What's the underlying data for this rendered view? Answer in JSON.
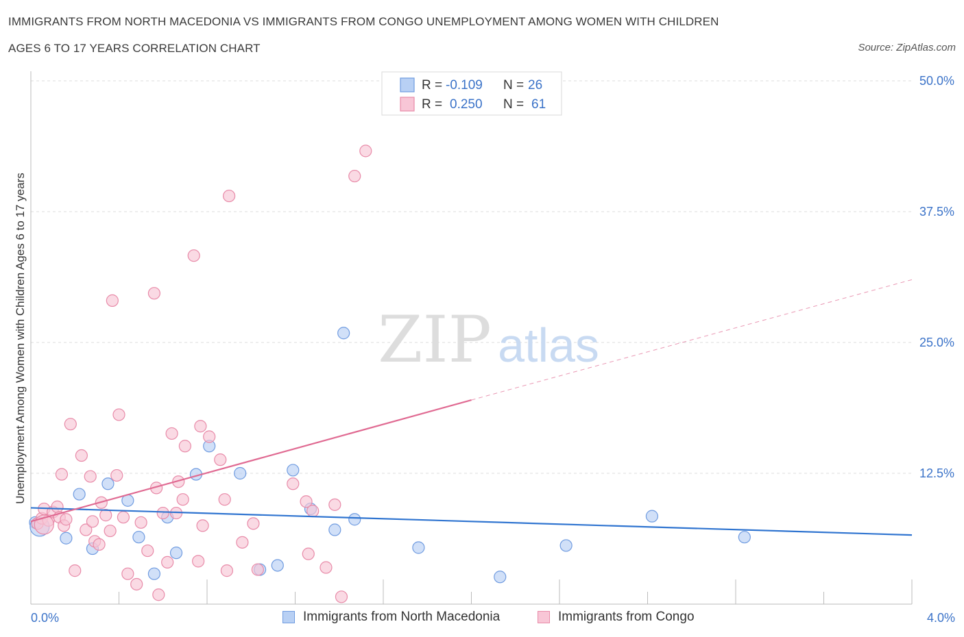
{
  "title_line1": "IMMIGRANTS FROM NORTH MACEDONIA VS IMMIGRANTS FROM CONGO UNEMPLOYMENT AMONG WOMEN WITH CHILDREN",
  "title_line2": "AGES 6 TO 17 YEARS CORRELATION CHART",
  "source": "Source: ZipAtlas.com",
  "watermark": {
    "zip": "ZIP",
    "atlas": "atlas"
  },
  "legend": {
    "r_label": "R =",
    "n_label": "N =",
    "rows": [
      {
        "r": "-0.109",
        "n": "26",
        "fill": "#b8d0f4",
        "stroke": "#6f9be0"
      },
      {
        "r": "0.250",
        "n": "61",
        "fill": "#f8c6d6",
        "stroke": "#e88aa8"
      }
    ],
    "value_color": "#3a72c8"
  },
  "chart_data": {
    "type": "scatter",
    "title": "IMMIGRANTS FROM NORTH MACEDONIA VS IMMIGRANTS FROM CONGO UNEMPLOYMENT AMONG WOMEN WITH CHILDREN AGES 6 TO 17 YEARS CORRELATION CHART",
    "xlabel": "",
    "ylabel": "Unemployment Among Women with Children Ages 6 to 17 years",
    "xlim": [
      0,
      4.0
    ],
    "ylim": [
      0,
      50.0
    ],
    "x_tick_labels": {
      "0": "0.0%",
      "4": "4.0%"
    },
    "y_ticks": [
      12.5,
      25.0,
      37.5,
      50.0
    ],
    "y_tick_labels": [
      "12.5%",
      "25.0%",
      "37.5%",
      "50.0%"
    ],
    "grid": true,
    "legend_position": "top-center",
    "tick_color": "#3a72c8",
    "series": [
      {
        "name": "Immigrants from North Macedonia",
        "color": "#6f9be0",
        "fill": "#b8d0f4",
        "line_color": "#2f74d0",
        "trend": {
          "x0": 0.0,
          "y0": 9.2,
          "x1": 4.0,
          "y1": 6.6
        },
        "points": [
          [
            0.02,
            7.8
          ],
          [
            0.16,
            6.3
          ],
          [
            0.22,
            10.5
          ],
          [
            0.28,
            5.3
          ],
          [
            0.35,
            11.5
          ],
          [
            0.44,
            9.9
          ],
          [
            0.49,
            6.4
          ],
          [
            0.56,
            2.9
          ],
          [
            0.62,
            8.3
          ],
          [
            0.66,
            4.9
          ],
          [
            0.75,
            12.4
          ],
          [
            0.81,
            15.1
          ],
          [
            0.95,
            12.5
          ],
          [
            1.04,
            3.3
          ],
          [
            1.12,
            3.7
          ],
          [
            1.19,
            12.8
          ],
          [
            1.27,
            9.1
          ],
          [
            1.42,
            25.9
          ],
          [
            1.38,
            7.1
          ],
          [
            1.47,
            8.1
          ],
          [
            1.76,
            5.4
          ],
          [
            2.13,
            2.6
          ],
          [
            2.43,
            5.6
          ],
          [
            2.82,
            8.4
          ],
          [
            3.24,
            6.4
          ],
          [
            0.04,
            7.4
          ]
        ]
      },
      {
        "name": "Immigrants from Congo",
        "color": "#e88aa8",
        "fill": "#f8c6d6",
        "line_color": "#e06a92",
        "trend": {
          "x0": 0.0,
          "y0": 7.9,
          "x1": 2.0,
          "y1": 19.5
        },
        "trend_ext": {
          "x0": 2.0,
          "y0": 19.5,
          "x1": 4.0,
          "y1": 31.0
        },
        "points": [
          [
            0.03,
            7.7
          ],
          [
            0.05,
            8.2
          ],
          [
            0.06,
            9.1
          ],
          [
            0.08,
            8.0
          ],
          [
            0.1,
            8.8
          ],
          [
            0.12,
            9.3
          ],
          [
            0.13,
            8.3
          ],
          [
            0.14,
            12.4
          ],
          [
            0.15,
            7.5
          ],
          [
            0.16,
            8.1
          ],
          [
            0.18,
            17.2
          ],
          [
            0.2,
            3.2
          ],
          [
            0.23,
            14.2
          ],
          [
            0.25,
            7.1
          ],
          [
            0.27,
            12.2
          ],
          [
            0.28,
            7.9
          ],
          [
            0.29,
            6.0
          ],
          [
            0.31,
            5.7
          ],
          [
            0.32,
            9.7
          ],
          [
            0.34,
            8.5
          ],
          [
            0.36,
            7.0
          ],
          [
            0.37,
            29.0
          ],
          [
            0.39,
            12.3
          ],
          [
            0.4,
            18.1
          ],
          [
            0.42,
            8.3
          ],
          [
            0.44,
            2.9
          ],
          [
            0.48,
            1.9
          ],
          [
            0.5,
            7.8
          ],
          [
            0.53,
            5.1
          ],
          [
            0.56,
            29.7
          ],
          [
            0.57,
            11.1
          ],
          [
            0.58,
            0.9
          ],
          [
            0.6,
            8.7
          ],
          [
            0.62,
            4.0
          ],
          [
            0.64,
            16.3
          ],
          [
            0.66,
            8.7
          ],
          [
            0.67,
            11.7
          ],
          [
            0.69,
            10.0
          ],
          [
            0.7,
            15.1
          ],
          [
            0.74,
            33.3
          ],
          [
            0.76,
            4.1
          ],
          [
            0.77,
            17.0
          ],
          [
            0.78,
            7.5
          ],
          [
            0.81,
            16.0
          ],
          [
            0.86,
            13.8
          ],
          [
            0.88,
            10.0
          ],
          [
            0.89,
            3.2
          ],
          [
            0.9,
            39.0
          ],
          [
            0.96,
            5.9
          ],
          [
            1.01,
            7.7
          ],
          [
            1.03,
            3.3
          ],
          [
            1.19,
            11.5
          ],
          [
            1.25,
            9.8
          ],
          [
            1.26,
            4.8
          ],
          [
            1.28,
            8.9
          ],
          [
            1.34,
            3.5
          ],
          [
            1.41,
            0.7
          ],
          [
            1.47,
            40.9
          ],
          [
            1.52,
            43.3
          ],
          [
            1.38,
            9.5
          ],
          [
            0.06,
            7.6
          ]
        ]
      }
    ]
  }
}
